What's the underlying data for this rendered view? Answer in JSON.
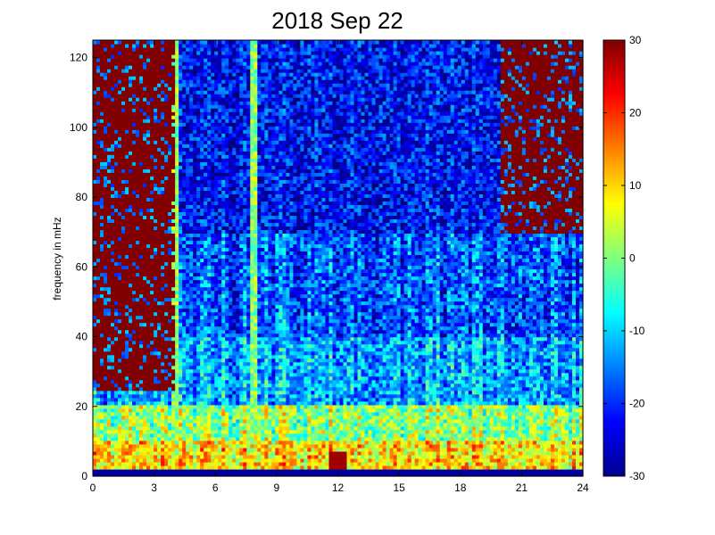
{
  "chart_data": {
    "type": "heatmap",
    "title": "2018 Sep 22",
    "xlabel": "",
    "ylabel": "frequency in mHz",
    "xlim": [
      0,
      24
    ],
    "ylim": [
      0,
      125
    ],
    "xticks": [
      "0",
      "3",
      "6",
      "9",
      "12",
      "15",
      "18",
      "21",
      "24"
    ],
    "yticks": [
      "0",
      "20",
      "40",
      "60",
      "80",
      "100",
      "120"
    ],
    "colorbar": {
      "range": [
        -30,
        30
      ],
      "ticks": [
        "30",
        "20",
        "10",
        "0",
        "-10",
        "-20",
        "-30"
      ],
      "colormap": "jet"
    },
    "grid": false,
    "description_values": {
      "x_hours": [
        0,
        3,
        6,
        9,
        12,
        15,
        18,
        21,
        24
      ],
      "typical_power_dB_by_band": [
        {
          "band_mHz": [
            0,
            2
          ],
          "value": -28
        },
        {
          "band_mHz": [
            2,
            10
          ],
          "value": 10
        },
        {
          "band_mHz": [
            10,
            20
          ],
          "value": 2
        },
        {
          "band_mHz": [
            20,
            40
          ],
          "value": -12
        },
        {
          "band_mHz": [
            40,
            70
          ],
          "value": -17
        },
        {
          "band_mHz": [
            70,
            125
          ],
          "value": -22
        }
      ],
      "saturated_regions": [
        {
          "x_hours": [
            0,
            4
          ],
          "y_mHz": [
            25,
            125
          ],
          "value": 30
        },
        {
          "x_hours": [
            20,
            24
          ],
          "y_mHz": [
            70,
            125
          ],
          "value": 30
        }
      ],
      "vertical_streaks_hours": [
        4.0,
        7.9
      ]
    }
  }
}
